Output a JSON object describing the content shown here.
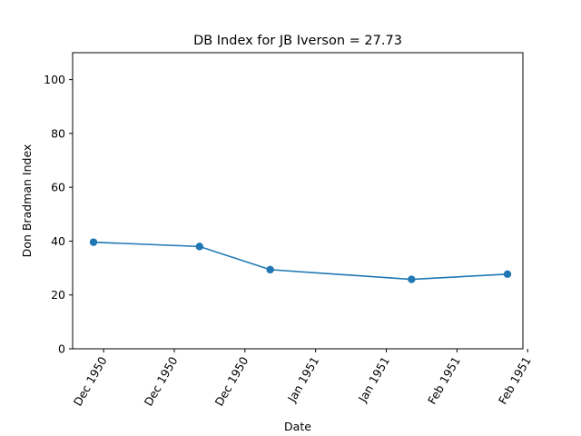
{
  "chart_data": {
    "type": "line",
    "title": "DB Index for JB Iverson = 27.73",
    "xlabel": "Date",
    "ylabel": "Don Bradman Index",
    "ylim": [
      0,
      110
    ],
    "yticks": [
      0,
      20,
      40,
      60,
      80,
      100
    ],
    "xlim": [
      "1950-11-29",
      "1951-02-19"
    ],
    "xticks": [
      {
        "date": "1950-12-01",
        "label": "Dec 1950"
      },
      {
        "date": "1950-12-15",
        "label": "Dec 1950"
      },
      {
        "date": "1950-12-29",
        "label": "Dec 1950"
      },
      {
        "date": "1951-01-12",
        "label": "Jan 1951"
      },
      {
        "date": "1951-01-26",
        "label": "Jan 1951"
      },
      {
        "date": "1951-02-09",
        "label": "Feb 1951"
      },
      {
        "date": "1951-02-23",
        "label": "Feb 1951"
      }
    ],
    "x": [
      "1950-11-29",
      "1950-12-20",
      "1951-01-03",
      "1951-01-31",
      "1951-02-19"
    ],
    "series": [
      {
        "values": [
          39.6,
          38.0,
          29.4,
          25.8,
          27.73
        ],
        "color": "#1f77b4"
      }
    ],
    "grid": false,
    "marker": "circle"
  }
}
